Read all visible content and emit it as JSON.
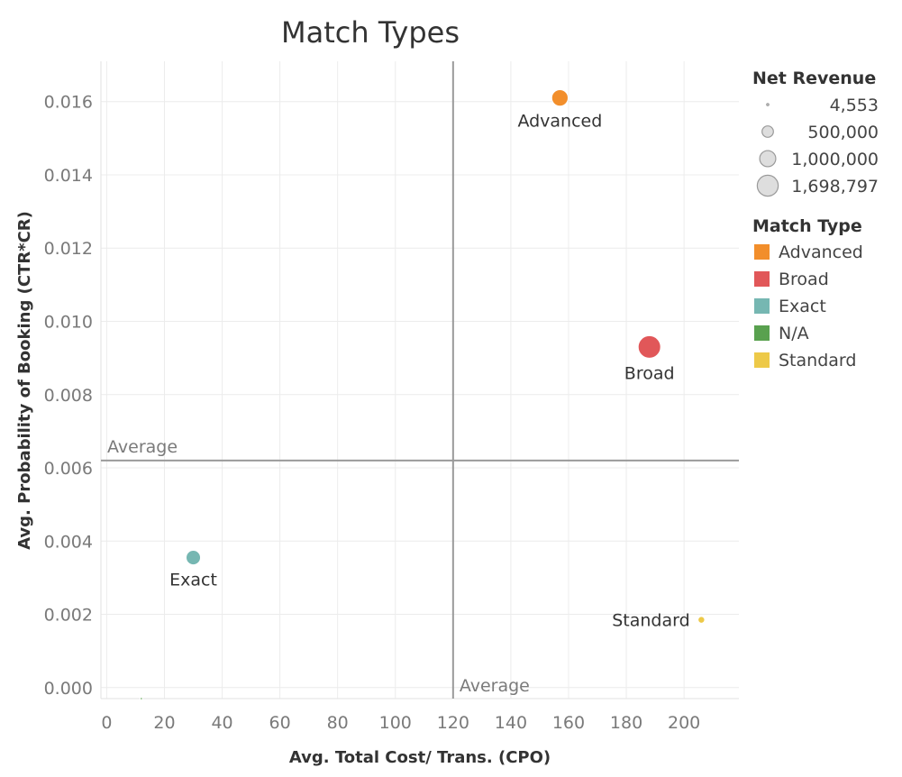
{
  "chart_data": {
    "type": "scatter",
    "title": "Match Types",
    "xlabel": "Avg. Total Cost/ Trans.  (CPO)",
    "ylabel": "Avg. Probability of Booking  (CTR*CR)",
    "xlim": [
      -2,
      219
    ],
    "ylim": [
      -0.0003,
      0.0171
    ],
    "xticks": [
      0,
      20,
      40,
      60,
      80,
      100,
      120,
      140,
      160,
      180,
      200
    ],
    "yticks": [
      0.0,
      0.002,
      0.004,
      0.006,
      0.008,
      0.01,
      0.012,
      0.014,
      0.016
    ],
    "ytick_labels": [
      "0.000",
      "0.002",
      "0.004",
      "0.006",
      "0.008",
      "0.010",
      "0.012",
      "0.014",
      "0.016"
    ],
    "grid": true,
    "points": [
      {
        "label": "Advanced",
        "match_type": "Advanced",
        "x": 157,
        "y": 0.0161,
        "net_revenue": 900000
      },
      {
        "label": "Broad",
        "match_type": "Broad",
        "x": 188,
        "y": 0.0093,
        "net_revenue": 1698797
      },
      {
        "label": "Exact",
        "match_type": "Exact",
        "x": 30,
        "y": 0.00355,
        "net_revenue": 700000
      },
      {
        "label": "Standard",
        "match_type": "Standard",
        "x": 206,
        "y": 0.00185,
        "net_revenue": 150000
      },
      {
        "label": "",
        "match_type": "N/A",
        "x": 12,
        "y": -0.0003,
        "net_revenue": 4553
      }
    ],
    "reference_lines": [
      {
        "axis": "x",
        "value": 120,
        "label": "Average"
      },
      {
        "axis": "y",
        "value": 0.0062,
        "label": "Average"
      }
    ],
    "size_legend": {
      "title": "Net Revenue",
      "items": [
        {
          "label": "4,553",
          "value": 4553
        },
        {
          "label": "500,000",
          "value": 500000
        },
        {
          "label": "1,000,000",
          "value": 1000000
        },
        {
          "label": "1,698,797",
          "value": 1698797
        }
      ]
    },
    "color_legend": {
      "title": "Match Type",
      "items": [
        {
          "label": "Advanced",
          "color": "#f28e2b"
        },
        {
          "label": "Broad",
          "color": "#e15759"
        },
        {
          "label": "Exact",
          "color": "#76b7b2"
        },
        {
          "label": "N/A",
          "color": "#59a14f"
        },
        {
          "label": "Standard",
          "color": "#edc948"
        }
      ]
    },
    "legend_placement": "right"
  }
}
